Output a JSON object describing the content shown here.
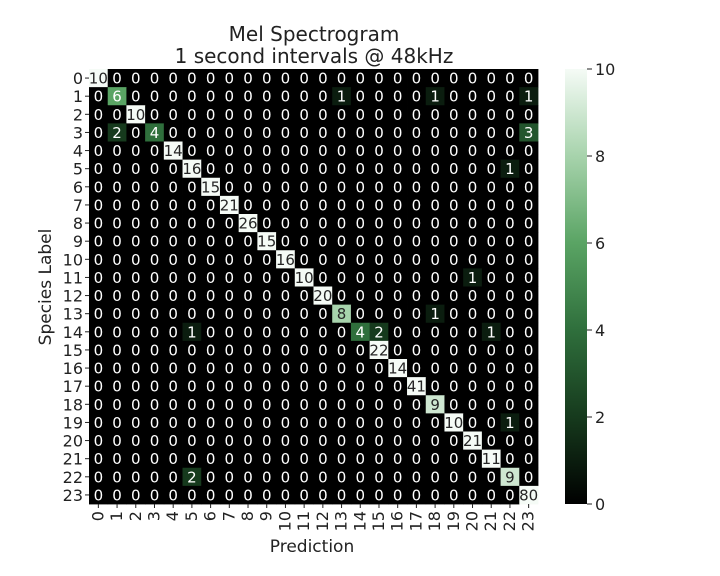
{
  "chart_data": {
    "type": "heatmap",
    "title": [
      "Mel Spectrogram",
      "1 second intervals @ 48kHz"
    ],
    "xlabel": "Prediction",
    "ylabel": "Species Label",
    "x_ticks": [
      "0",
      "1",
      "2",
      "3",
      "4",
      "5",
      "6",
      "7",
      "8",
      "9",
      "10",
      "11",
      "12",
      "13",
      "14",
      "15",
      "16",
      "17",
      "18",
      "19",
      "20",
      "21",
      "22",
      "23"
    ],
    "y_ticks": [
      "0",
      "1",
      "2",
      "3",
      "4",
      "5",
      "6",
      "7",
      "8",
      "9",
      "10",
      "11",
      "12",
      "13",
      "14",
      "15",
      "16",
      "17",
      "18",
      "19",
      "20",
      "21",
      "22",
      "23"
    ],
    "colorbar": {
      "min": 0,
      "max": 10,
      "ticks": [
        0,
        2,
        4,
        6,
        8,
        10
      ]
    },
    "colors": {
      "low": "#000000",
      "mid": "#5aa464",
      "high": "#f5fbf6"
    },
    "matrix": [
      [
        10,
        0,
        0,
        0,
        0,
        0,
        0,
        0,
        0,
        0,
        0,
        0,
        0,
        0,
        0,
        0,
        0,
        0,
        0,
        0,
        0,
        0,
        0,
        0
      ],
      [
        0,
        6,
        0,
        0,
        0,
        0,
        0,
        0,
        0,
        0,
        0,
        0,
        0,
        1,
        0,
        0,
        0,
        0,
        1,
        0,
        0,
        0,
        0,
        1
      ],
      [
        0,
        0,
        10,
        0,
        0,
        0,
        0,
        0,
        0,
        0,
        0,
        0,
        0,
        0,
        0,
        0,
        0,
        0,
        0,
        0,
        0,
        0,
        0,
        0
      ],
      [
        0,
        2,
        0,
        4,
        0,
        0,
        0,
        0,
        0,
        0,
        0,
        0,
        0,
        0,
        0,
        0,
        0,
        0,
        0,
        0,
        0,
        0,
        0,
        3
      ],
      [
        0,
        0,
        0,
        0,
        14,
        0,
        0,
        0,
        0,
        0,
        0,
        0,
        0,
        0,
        0,
        0,
        0,
        0,
        0,
        0,
        0,
        0,
        0,
        0
      ],
      [
        0,
        0,
        0,
        0,
        0,
        16,
        0,
        0,
        0,
        0,
        0,
        0,
        0,
        0,
        0,
        0,
        0,
        0,
        0,
        0,
        0,
        0,
        1,
        0
      ],
      [
        0,
        0,
        0,
        0,
        0,
        0,
        15,
        0,
        0,
        0,
        0,
        0,
        0,
        0,
        0,
        0,
        0,
        0,
        0,
        0,
        0,
        0,
        0,
        0
      ],
      [
        0,
        0,
        0,
        0,
        0,
        0,
        0,
        21,
        0,
        0,
        0,
        0,
        0,
        0,
        0,
        0,
        0,
        0,
        0,
        0,
        0,
        0,
        0,
        0
      ],
      [
        0,
        0,
        0,
        0,
        0,
        0,
        0,
        0,
        26,
        0,
        0,
        0,
        0,
        0,
        0,
        0,
        0,
        0,
        0,
        0,
        0,
        0,
        0,
        0
      ],
      [
        0,
        0,
        0,
        0,
        0,
        0,
        0,
        0,
        0,
        15,
        0,
        0,
        0,
        0,
        0,
        0,
        0,
        0,
        0,
        0,
        0,
        0,
        0,
        0
      ],
      [
        0,
        0,
        0,
        0,
        0,
        0,
        0,
        0,
        0,
        0,
        16,
        0,
        0,
        0,
        0,
        0,
        0,
        0,
        0,
        0,
        0,
        0,
        0,
        0
      ],
      [
        0,
        0,
        0,
        0,
        0,
        0,
        0,
        0,
        0,
        0,
        0,
        10,
        0,
        0,
        0,
        0,
        0,
        0,
        0,
        0,
        1,
        0,
        0,
        0
      ],
      [
        0,
        0,
        0,
        0,
        0,
        0,
        0,
        0,
        0,
        0,
        0,
        0,
        20,
        0,
        0,
        0,
        0,
        0,
        0,
        0,
        0,
        0,
        0,
        0
      ],
      [
        0,
        0,
        0,
        0,
        0,
        0,
        0,
        0,
        0,
        0,
        0,
        0,
        0,
        8,
        0,
        0,
        0,
        0,
        1,
        0,
        0,
        0,
        0,
        0
      ],
      [
        0,
        0,
        0,
        0,
        0,
        1,
        0,
        0,
        0,
        0,
        0,
        0,
        0,
        0,
        4,
        2,
        0,
        0,
        0,
        0,
        0,
        1,
        0,
        0
      ],
      [
        0,
        0,
        0,
        0,
        0,
        0,
        0,
        0,
        0,
        0,
        0,
        0,
        0,
        0,
        0,
        22,
        0,
        0,
        0,
        0,
        0,
        0,
        0,
        0
      ],
      [
        0,
        0,
        0,
        0,
        0,
        0,
        0,
        0,
        0,
        0,
        0,
        0,
        0,
        0,
        0,
        0,
        14,
        0,
        0,
        0,
        0,
        0,
        0,
        0
      ],
      [
        0,
        0,
        0,
        0,
        0,
        0,
        0,
        0,
        0,
        0,
        0,
        0,
        0,
        0,
        0,
        0,
        0,
        41,
        0,
        0,
        0,
        0,
        0,
        0
      ],
      [
        0,
        0,
        0,
        0,
        0,
        0,
        0,
        0,
        0,
        0,
        0,
        0,
        0,
        0,
        0,
        0,
        0,
        0,
        9,
        0,
        0,
        0,
        0,
        0
      ],
      [
        0,
        0,
        0,
        0,
        0,
        0,
        0,
        0,
        0,
        0,
        0,
        0,
        0,
        0,
        0,
        0,
        0,
        0,
        0,
        10,
        0,
        0,
        1,
        0
      ],
      [
        0,
        0,
        0,
        0,
        0,
        0,
        0,
        0,
        0,
        0,
        0,
        0,
        0,
        0,
        0,
        0,
        0,
        0,
        0,
        0,
        21,
        0,
        0,
        0
      ],
      [
        0,
        0,
        0,
        0,
        0,
        0,
        0,
        0,
        0,
        0,
        0,
        0,
        0,
        0,
        0,
        0,
        0,
        0,
        0,
        0,
        0,
        11,
        0,
        0
      ],
      [
        0,
        0,
        0,
        0,
        0,
        2,
        0,
        0,
        0,
        0,
        0,
        0,
        0,
        0,
        0,
        0,
        0,
        0,
        0,
        0,
        0,
        0,
        9,
        0
      ],
      [
        0,
        0,
        0,
        0,
        0,
        0,
        0,
        0,
        0,
        0,
        0,
        0,
        0,
        0,
        0,
        0,
        0,
        0,
        0,
        0,
        0,
        0,
        0,
        80
      ]
    ]
  }
}
